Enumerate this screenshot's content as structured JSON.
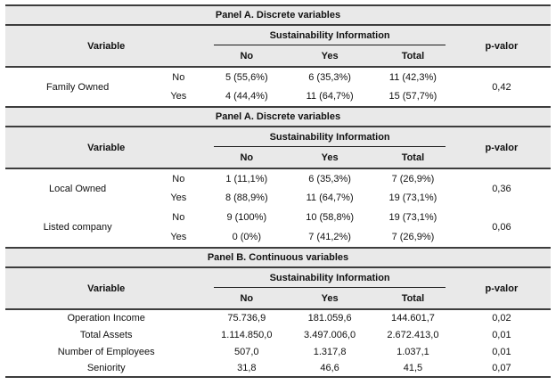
{
  "colors": {
    "band_bg": "#e9e9e9",
    "rule_dark": "#3d3d3d",
    "rule_thin": "#1a1a1a",
    "text": "#111111"
  },
  "panels": [
    {
      "title": "Panel A. Discrete variables",
      "header": {
        "variable": "Variable",
        "group": "Sustainability Information",
        "cols": [
          "No",
          "Yes",
          "Total"
        ],
        "pvalue": "p-valor"
      },
      "groups": [
        {
          "variable": "Family Owned",
          "pvalue": "0,42",
          "rows": [
            {
              "cat": "No",
              "no": "5 (55,6%)",
              "yes": "6 (35,3%)",
              "total": "11 (42,3%)"
            },
            {
              "cat": "Yes",
              "no": "4 (44,4%)",
              "yes": "11 (64,7%)",
              "total": "15 (57,7%)"
            }
          ]
        }
      ]
    },
    {
      "title": "Panel A. Discrete variables",
      "header": {
        "variable": "Variable",
        "group": "Sustainability Information",
        "cols": [
          "No",
          "Yes",
          "Total"
        ],
        "pvalue": "p-valor"
      },
      "groups": [
        {
          "variable": "Local Owned",
          "pvalue": "0,36",
          "rows": [
            {
              "cat": "No",
              "no": "1 (11,1%)",
              "yes": "6 (35,3%)",
              "total": "7 (26,9%)"
            },
            {
              "cat": "Yes",
              "no": "8 (88,9%)",
              "yes": "11 (64,7%)",
              "total": "19 (73,1%)"
            }
          ]
        },
        {
          "variable": "Listed  company",
          "pvalue": "0,06",
          "rows": [
            {
              "cat": "No",
              "no": "9 (100%)",
              "yes": "10 (58,8%)",
              "total": "19 (73,1%)"
            },
            {
              "cat": "Yes",
              "no": "0 (0%)",
              "yes": "7 (41,2%)",
              "total": "7 (26,9%)"
            }
          ]
        }
      ]
    },
    {
      "title": "Panel B. Continuous variables",
      "header": {
        "variable": "Variable",
        "group": "Sustainability Information",
        "cols": [
          "No",
          "Yes",
          "Total"
        ],
        "pvalue": "p-valor"
      },
      "rows": [
        {
          "variable": "Operation Income",
          "no": "75.736,9",
          "yes": "181.059,6",
          "total": "144.601,7",
          "pvalue": "0,02"
        },
        {
          "variable": "Total Assets",
          "no": "1.114.850,0",
          "yes": "3.497.006,0",
          "total": "2.672.413,0",
          "pvalue": "0,01"
        },
        {
          "variable": "Number of Employees",
          "no": "507,0",
          "yes": "1.317,8",
          "total": "1.037,1",
          "pvalue": "0,01"
        },
        {
          "variable": "Seniority",
          "no": "31,8",
          "yes": "46,6",
          "total": "41,5",
          "pvalue": "0,07"
        }
      ]
    }
  ]
}
